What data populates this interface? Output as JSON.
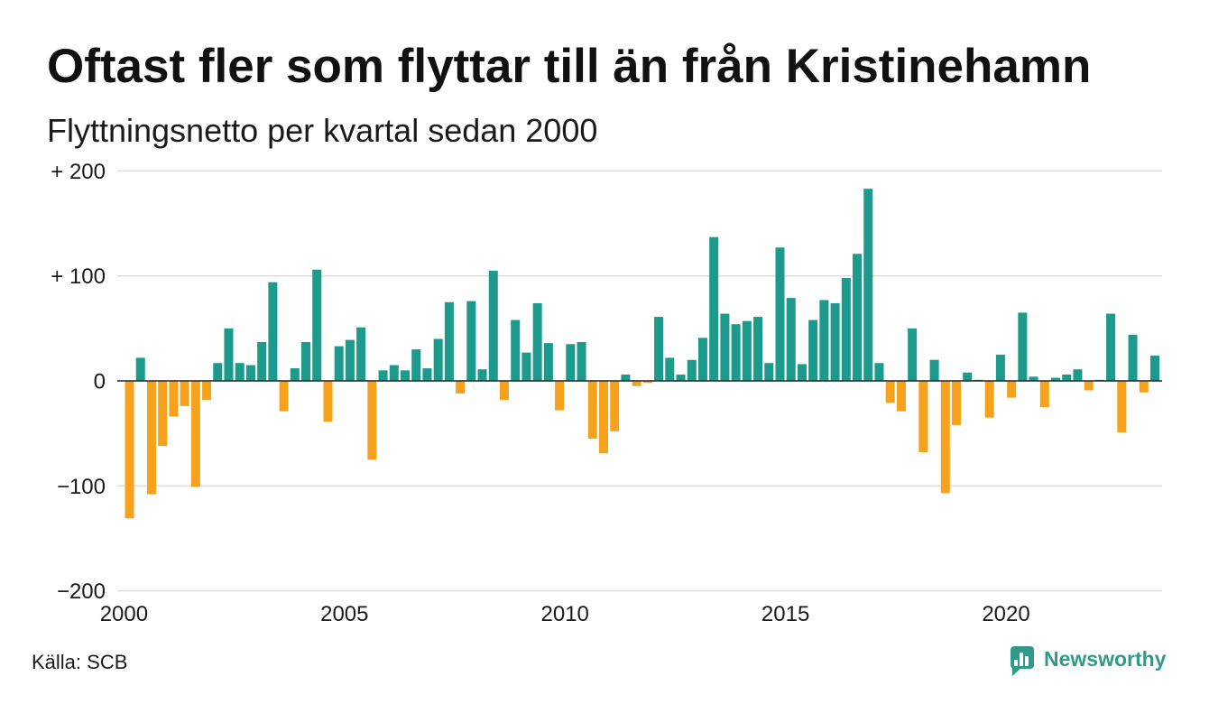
{
  "chart_data": {
    "type": "bar",
    "title": "Oftast fler som flyttar till än från Kristinehamn",
    "subtitle": "Flyttningsnetto per kvartal sedan 2000",
    "x": [
      2000,
      2000.25,
      2000.5,
      2000.75,
      2001,
      2001.25,
      2001.5,
      2001.75,
      2002,
      2002.25,
      2002.5,
      2002.75,
      2003,
      2003.25,
      2003.5,
      2003.75,
      2004,
      2004.25,
      2004.5,
      2004.75,
      2005,
      2005.25,
      2005.5,
      2005.75,
      2006,
      2006.25,
      2006.5,
      2006.75,
      2007,
      2007.25,
      2007.5,
      2007.75,
      2008,
      2008.25,
      2008.5,
      2008.75,
      2009,
      2009.25,
      2009.5,
      2009.75,
      2010,
      2010.25,
      2010.5,
      2010.75,
      2011,
      2011.25,
      2011.5,
      2011.75,
      2012,
      2012.25,
      2012.5,
      2012.75,
      2013,
      2013.25,
      2013.5,
      2013.75,
      2014,
      2014.25,
      2014.5,
      2014.75,
      2015,
      2015.25,
      2015.5,
      2015.75,
      2016,
      2016.25,
      2016.5,
      2016.75,
      2017,
      2017.25,
      2017.5,
      2017.75,
      2018,
      2018.25,
      2018.5,
      2018.75,
      2019,
      2019.25,
      2019.5,
      2019.75,
      2020,
      2020.25,
      2020.5,
      2020.75,
      2021,
      2021.25,
      2021.5,
      2021.75,
      2022,
      2022.25,
      2022.5,
      2022.75,
      2023,
      2023.25
    ],
    "values": [
      -131,
      22,
      -108,
      -62,
      -34,
      -24,
      -101,
      -18,
      17,
      50,
      17,
      15,
      37,
      94,
      -29,
      12,
      37,
      106,
      -39,
      33,
      39,
      51,
      -75,
      10,
      15,
      10,
      30,
      12,
      40,
      75,
      -12,
      76,
      11,
      105,
      -18,
      58,
      27,
      74,
      36,
      -28,
      35,
      37,
      -55,
      -69,
      -48,
      6,
      -5,
      -2,
      61,
      22,
      6,
      20,
      41,
      137,
      64,
      54,
      57,
      61,
      17,
      127,
      79,
      16,
      58,
      77,
      74,
      98,
      121,
      183,
      17,
      -21,
      -29,
      50,
      -68,
      20,
      -107,
      -42,
      8,
      1,
      -35,
      25,
      -16,
      65,
      4,
      -25,
      3,
      6,
      11,
      -9,
      1,
      64,
      -49,
      44,
      -11,
      24
    ],
    "xlim": [
      2000,
      2023.5
    ],
    "ylim": [
      -200,
      200
    ],
    "x_ticks": [
      2000,
      2005,
      2010,
      2015,
      2020
    ],
    "x_tick_labels": [
      "2000",
      "2005",
      "2010",
      "2015",
      "2020"
    ],
    "y_ticks": [
      200,
      100,
      0,
      -100,
      -200
    ],
    "y_tick_labels": [
      "+ 200",
      "+ 100",
      "0",
      "−100",
      "−200"
    ],
    "grid": true
  },
  "footer": {
    "source": "Källa: SCB",
    "brand": "Newsworthy",
    "brand_icon": "newsworthy-logo-icon"
  },
  "colors": {
    "positive_bar": "#1c9a8b",
    "negative_bar": "#f6a21d",
    "brand": "#31998a",
    "gridline": "#dedede",
    "zero_line": "#222222",
    "text": "#111111"
  }
}
